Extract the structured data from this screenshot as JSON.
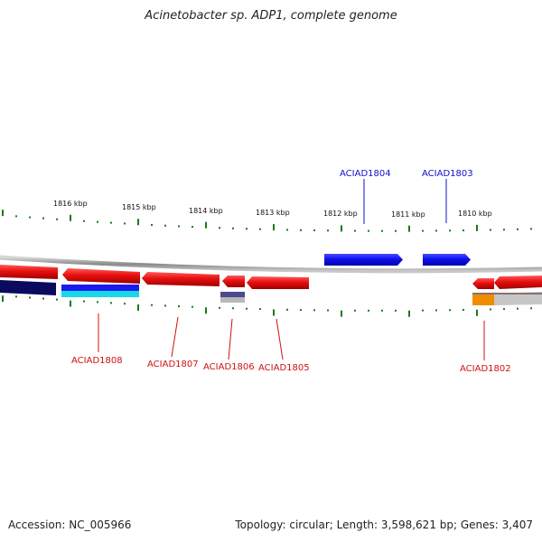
{
  "title": "Acinetobacter sp. ADP1, complete genome",
  "footer": {
    "accession": "Accession: NC_005966",
    "summary": "Topology: circular; Length: 3,598,621 bp; Genes: 3,407"
  },
  "colors": {
    "forward_gene": "#1f1fe6",
    "reverse_gene": "#e01010",
    "gene_label_forward": "#1010cc",
    "gene_label_reverse": "#d01010",
    "tick": "#1a7a1a",
    "backbone": "#9a9a9a"
  },
  "scale_labels": [
    "1816 kbp",
    "1815 kbp",
    "1814 kbp",
    "1813 kbp",
    "1812 kbp",
    "1811 kbp",
    "1810 kbp"
  ],
  "genes": [
    {
      "name": "ACIAD1804",
      "strand": "forward"
    },
    {
      "name": "ACIAD1803",
      "strand": "forward"
    },
    {
      "name": "ACIAD1808",
      "strand": "reverse"
    },
    {
      "name": "ACIAD1807",
      "strand": "reverse"
    },
    {
      "name": "ACIAD1806",
      "strand": "reverse"
    },
    {
      "name": "ACIAD1805",
      "strand": "reverse"
    },
    {
      "name": "ACIAD1802",
      "strand": "reverse"
    }
  ]
}
